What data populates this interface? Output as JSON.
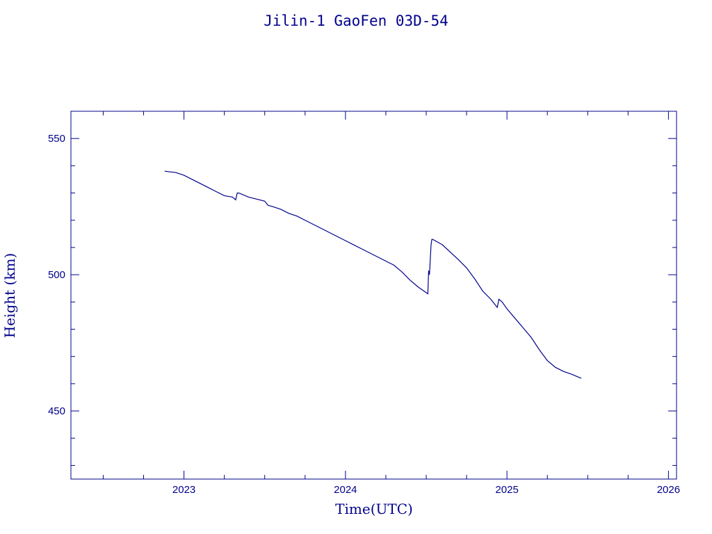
{
  "chart_data": {
    "type": "line",
    "title": "Jilin-1 GaoFen 03D-54",
    "xlabel": "Time(UTC)",
    "ylabel": "Height (km)",
    "xlim": [
      2022.3,
      2026.05
    ],
    "ylim": [
      425,
      560
    ],
    "x_ticks": [
      2023,
      2024,
      2025,
      2026
    ],
    "x_tick_labels": [
      "2023",
      "2024",
      "2025",
      "2026"
    ],
    "y_ticks": [
      450,
      500,
      550
    ],
    "y_tick_labels": [
      "450",
      "500",
      "550"
    ],
    "x_minor_step": 0.25,
    "y_minor_step": 10,
    "grid": false,
    "colors": {
      "ink": "#00008b"
    },
    "series": [
      {
        "x": [
          2022.88,
          2022.95,
          2023.0,
          2023.05,
          2023.1,
          2023.15,
          2023.2,
          2023.25,
          2023.3,
          2023.32,
          2023.33,
          2023.34,
          2023.4,
          2023.5,
          2023.52,
          2023.55,
          2023.6,
          2023.65,
          2023.7,
          2023.75,
          2023.8,
          2023.85,
          2023.9,
          2024.0,
          2024.1,
          2024.2,
          2024.25,
          2024.3,
          2024.35,
          2024.4,
          2024.45,
          2024.51,
          2024.515,
          2024.52,
          2024.53,
          2024.535,
          2024.54,
          2024.6,
          2024.7,
          2024.75,
          2024.8,
          2024.85,
          2024.9,
          2024.94,
          2024.95,
          2024.97,
          2025.0,
          2025.05,
          2025.1,
          2025.15,
          2025.2,
          2025.25,
          2025.3,
          2025.35,
          2025.4,
          2025.46
        ],
        "y": [
          538,
          537.5,
          536.5,
          535,
          533.5,
          532,
          530.5,
          529,
          528.5,
          527.5,
          530,
          530,
          528.5,
          527,
          525.5,
          525,
          524,
          522.5,
          521.5,
          520,
          518.5,
          517,
          515.5,
          512.5,
          509.5,
          506.5,
          505,
          503.5,
          501,
          498,
          495.5,
          493,
          501.5,
          500,
          511,
          513,
          513,
          511,
          505.5,
          502.5,
          498.5,
          494,
          491,
          488,
          491,
          490,
          487.5,
          484,
          480.5,
          477,
          472.5,
          468.5,
          466,
          464.5,
          463.5,
          462
        ]
      }
    ]
  }
}
